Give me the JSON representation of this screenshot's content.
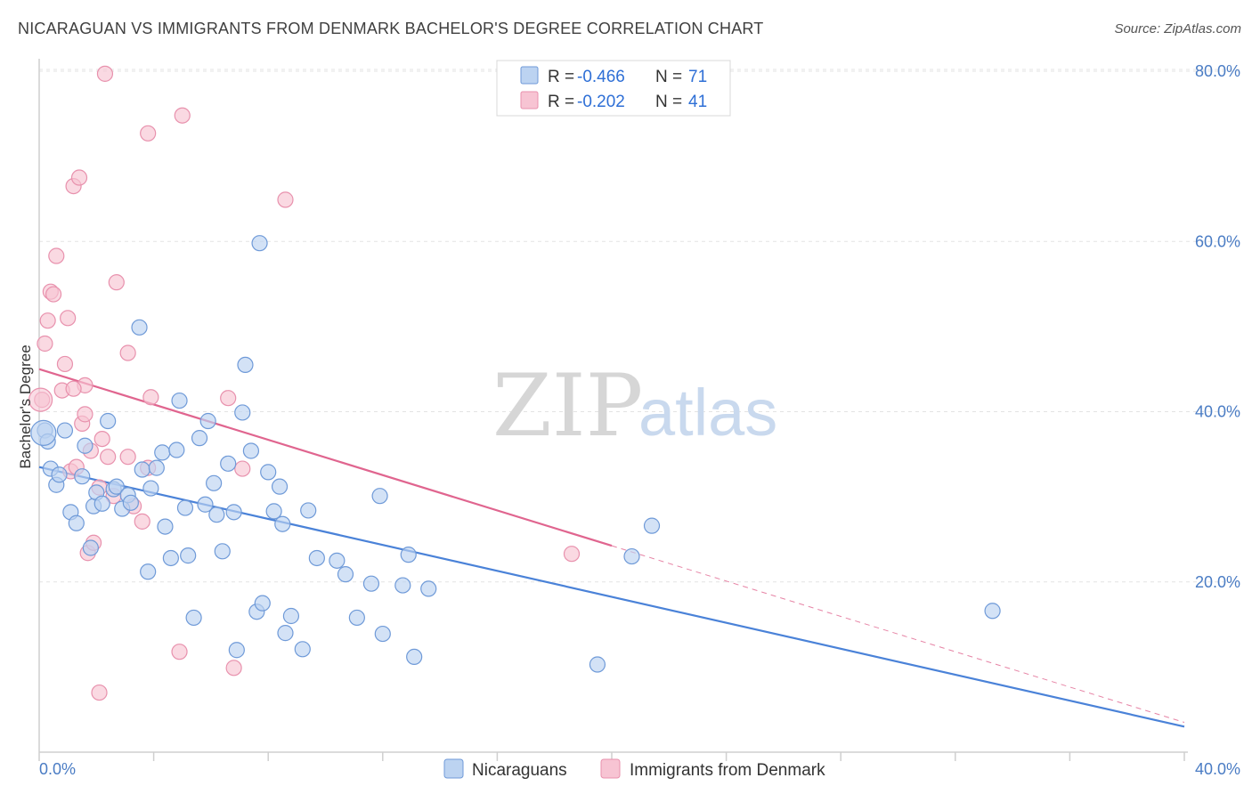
{
  "header": {
    "title": "NICARAGUAN VS IMMIGRANTS FROM DENMARK BACHELOR'S DEGREE CORRELATION CHART",
    "source": "Source: ZipAtlas.com"
  },
  "watermark": {
    "zip": "ZIP",
    "atlas": "atlas"
  },
  "colors": {
    "blue": "#4a82d8",
    "blue_fill": "#bcd3f1",
    "pink": "#e0658f",
    "pink_fill": "#f7c4d3",
    "axis_text": "#4a7cc4"
  },
  "chart_data": {
    "type": "scatter",
    "title": "NICARAGUAN VS IMMIGRANTS FROM DENMARK BACHELOR'S DEGREE CORRELATION CHART",
    "xlabel": "",
    "ylabel": "Bachelor's Degree",
    "xlim": [
      0,
      40
    ],
    "ylim": [
      0,
      80
    ],
    "x_tick_labels": [
      "0.0%",
      "40.0%"
    ],
    "y_ticks": [
      20,
      40,
      60,
      80
    ],
    "y_tick_labels": [
      "20.0%",
      "40.0%",
      "60.0%",
      "80.0%"
    ],
    "grid": true,
    "legend_box": [
      {
        "r_label": "R = ",
        "r_value": "-0.466",
        "n_label": "N = ",
        "n_value": "71"
      },
      {
        "r_label": "R = ",
        "r_value": "-0.202",
        "n_label": "N = ",
        "n_value": "41"
      }
    ],
    "series": [
      {
        "name": "Nicaraguans",
        "color": "#4a82d8",
        "trend": {
          "x": [
            0,
            40
          ],
          "y": [
            33.5,
            3.0
          ],
          "dashed_from": null
        },
        "points": [
          [
            0.2,
            37.8
          ],
          [
            0.3,
            36.5
          ],
          [
            0.4,
            33.3
          ],
          [
            0.6,
            31.4
          ],
          [
            0.7,
            32.6
          ],
          [
            0.9,
            37.8
          ],
          [
            1.1,
            28.2
          ],
          [
            1.3,
            26.9
          ],
          [
            1.5,
            32.4
          ],
          [
            1.6,
            36.0
          ],
          [
            1.8,
            24.0
          ],
          [
            1.9,
            28.9
          ],
          [
            2.0,
            30.5
          ],
          [
            2.2,
            29.2
          ],
          [
            2.4,
            38.9
          ],
          [
            2.6,
            30.9
          ],
          [
            2.7,
            31.2
          ],
          [
            2.9,
            28.6
          ],
          [
            3.1,
            30.2
          ],
          [
            3.2,
            29.3
          ],
          [
            3.5,
            49.9
          ],
          [
            3.6,
            33.2
          ],
          [
            3.8,
            21.2
          ],
          [
            3.9,
            31.0
          ],
          [
            4.1,
            33.4
          ],
          [
            4.3,
            35.2
          ],
          [
            4.4,
            26.5
          ],
          [
            4.6,
            22.8
          ],
          [
            4.8,
            35.5
          ],
          [
            4.9,
            41.3
          ],
          [
            5.1,
            28.7
          ],
          [
            5.2,
            23.1
          ],
          [
            5.4,
            15.8
          ],
          [
            5.6,
            36.9
          ],
          [
            5.8,
            29.1
          ],
          [
            5.9,
            38.9
          ],
          [
            6.1,
            31.6
          ],
          [
            6.2,
            27.9
          ],
          [
            6.4,
            23.6
          ],
          [
            6.6,
            33.9
          ],
          [
            6.8,
            28.2
          ],
          [
            6.9,
            12.0
          ],
          [
            7.1,
            39.9
          ],
          [
            7.2,
            45.5
          ],
          [
            7.4,
            35.4
          ],
          [
            7.6,
            16.5
          ],
          [
            7.7,
            59.8
          ],
          [
            7.8,
            17.5
          ],
          [
            8.0,
            32.9
          ],
          [
            8.2,
            28.3
          ],
          [
            8.4,
            31.2
          ],
          [
            8.5,
            26.8
          ],
          [
            8.6,
            14.0
          ],
          [
            8.8,
            16.0
          ],
          [
            9.2,
            12.1
          ],
          [
            9.4,
            28.4
          ],
          [
            9.7,
            22.8
          ],
          [
            10.4,
            22.5
          ],
          [
            10.7,
            20.9
          ],
          [
            11.1,
            15.8
          ],
          [
            11.6,
            19.8
          ],
          [
            11.9,
            30.1
          ],
          [
            12.0,
            13.9
          ],
          [
            12.7,
            19.6
          ],
          [
            12.9,
            23.2
          ],
          [
            13.1,
            11.2
          ],
          [
            13.6,
            19.2
          ],
          [
            19.5,
            10.3
          ],
          [
            20.7,
            23.0
          ],
          [
            21.4,
            26.6
          ],
          [
            33.3,
            16.6
          ]
        ]
      },
      {
        "name": "Immigrants from Denmark",
        "color": "#e0658f",
        "trend": {
          "x": [
            0,
            40
          ],
          "y": [
            45.0,
            3.5
          ],
          "dashed_from": 20.0
        },
        "points": [
          [
            0.1,
            41.4
          ],
          [
            0.2,
            48.0
          ],
          [
            0.3,
            50.7
          ],
          [
            0.4,
            54.1
          ],
          [
            0.5,
            53.8
          ],
          [
            0.6,
            58.3
          ],
          [
            0.8,
            42.5
          ],
          [
            0.9,
            45.6
          ],
          [
            1.0,
            51.0
          ],
          [
            1.1,
            33.0
          ],
          [
            1.2,
            66.5
          ],
          [
            1.3,
            33.5
          ],
          [
            1.4,
            67.5
          ],
          [
            1.5,
            38.6
          ],
          [
            1.6,
            43.1
          ],
          [
            1.7,
            23.4
          ],
          [
            1.8,
            35.4
          ],
          [
            1.9,
            24.6
          ],
          [
            2.1,
            7.0
          ],
          [
            2.2,
            36.8
          ],
          [
            2.4,
            34.7
          ],
          [
            2.6,
            30.1
          ],
          [
            2.7,
            55.2
          ],
          [
            3.1,
            46.9
          ],
          [
            3.1,
            34.7
          ],
          [
            3.3,
            28.9
          ],
          [
            3.6,
            27.1
          ],
          [
            3.8,
            33.4
          ],
          [
            3.8,
            72.7
          ],
          [
            3.9,
            41.7
          ],
          [
            4.9,
            11.8
          ],
          [
            5.0,
            74.8
          ],
          [
            6.6,
            41.6
          ],
          [
            6.8,
            9.9
          ],
          [
            7.1,
            33.3
          ],
          [
            8.6,
            64.9
          ],
          [
            2.3,
            79.7
          ],
          [
            1.2,
            42.7
          ],
          [
            1.6,
            39.7
          ],
          [
            2.1,
            31.1
          ],
          [
            18.6,
            23.3
          ]
        ]
      }
    ]
  }
}
